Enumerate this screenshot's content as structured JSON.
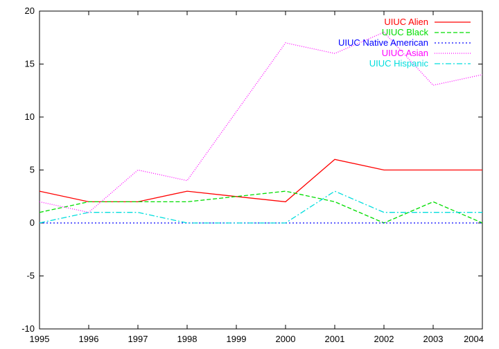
{
  "chart_data": {
    "type": "line",
    "title": "",
    "xlabel": "",
    "ylabel": "",
    "x": [
      1995,
      1996,
      1997,
      1998,
      1999,
      2000,
      2001,
      2002,
      2003,
      2004
    ],
    "x_tick_labels": [
      "1995",
      "1996",
      "1997",
      "1998",
      "1999",
      "2000",
      "2001",
      "2002",
      "2003",
      "2004"
    ],
    "y_tick_labels": [
      "-10",
      "-5",
      "0",
      "5",
      "10",
      "15",
      "20"
    ],
    "y_ticks": [
      -10,
      -5,
      0,
      5,
      10,
      15,
      20
    ],
    "xlim": [
      1995,
      2004
    ],
    "ylim": [
      -10,
      20
    ],
    "grid": false,
    "legend_position": "top-right",
    "series": [
      {
        "name": "UIUC Alien",
        "color": "#ff0000",
        "dash": "solid",
        "values": [
          3,
          2,
          2,
          3,
          2.5,
          2,
          6,
          5,
          5,
          5
        ]
      },
      {
        "name": "UIUC Black",
        "color": "#00dd00",
        "dash": "dashed",
        "values": [
          1,
          2,
          2,
          2,
          2.5,
          3,
          2,
          0,
          2,
          0
        ]
      },
      {
        "name": "UIUC Native American",
        "color": "#0000ff",
        "dash": "dotted",
        "values": [
          0,
          0,
          0,
          0,
          0,
          0,
          0,
          0,
          0,
          0
        ]
      },
      {
        "name": "UIUC Asian",
        "color": "#ff00ff",
        "dash": "fine-dotted",
        "values": [
          2,
          1,
          5,
          4,
          10.5,
          17,
          16,
          18,
          13,
          14
        ]
      },
      {
        "name": "UIUC Hispanic",
        "color": "#00dddd",
        "dash": "dash-dot",
        "values": [
          0,
          1,
          1,
          0,
          0,
          0,
          3,
          1,
          1,
          1
        ]
      }
    ]
  }
}
